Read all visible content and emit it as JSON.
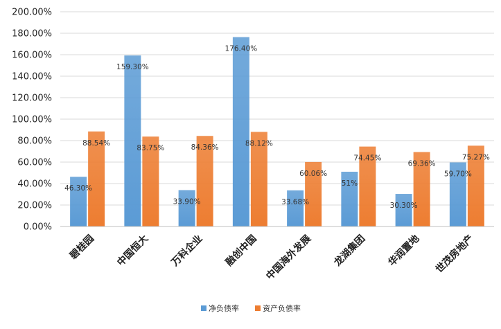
{
  "chart_data": {
    "type": "bar",
    "title": "",
    "xlabel": "",
    "ylabel": "",
    "categories": [
      "碧桂园",
      "中国恒大",
      "万科企业",
      "融创中国",
      "中国海外发展",
      "龙湖集团",
      "华润置地",
      "世茂房地产"
    ],
    "series": [
      {
        "name": "净负债率",
        "values": [
          46.3,
          159.3,
          33.9,
          176.4,
          33.68,
          51,
          30.3,
          59.7
        ],
        "labels": [
          "46.30%",
          "159.30%",
          "33.90%",
          "176.40%",
          "33.68%",
          "51%",
          "30.30%",
          "59.70%"
        ]
      },
      {
        "name": "资产负债率",
        "values": [
          88.54,
          83.75,
          84.36,
          88.12,
          60.06,
          74.45,
          69.36,
          75.27
        ],
        "labels": [
          "88.54%",
          "83.75%",
          "84.36%",
          "88.12%",
          "60.06%",
          "74.45%",
          "69.36%",
          "75.27%"
        ]
      }
    ],
    "ylim": [
      0,
      200
    ],
    "yticks": [
      "0.00%",
      "20.00%",
      "40.00%",
      "60.00%",
      "80.00%",
      "100.00%",
      "120.00%",
      "140.00%",
      "160.00%",
      "180.00%",
      "200.00%"
    ],
    "grid": true,
    "legend_position": "bottom",
    "colors": [
      "#5B9BD5",
      "#ED7D31"
    ]
  }
}
